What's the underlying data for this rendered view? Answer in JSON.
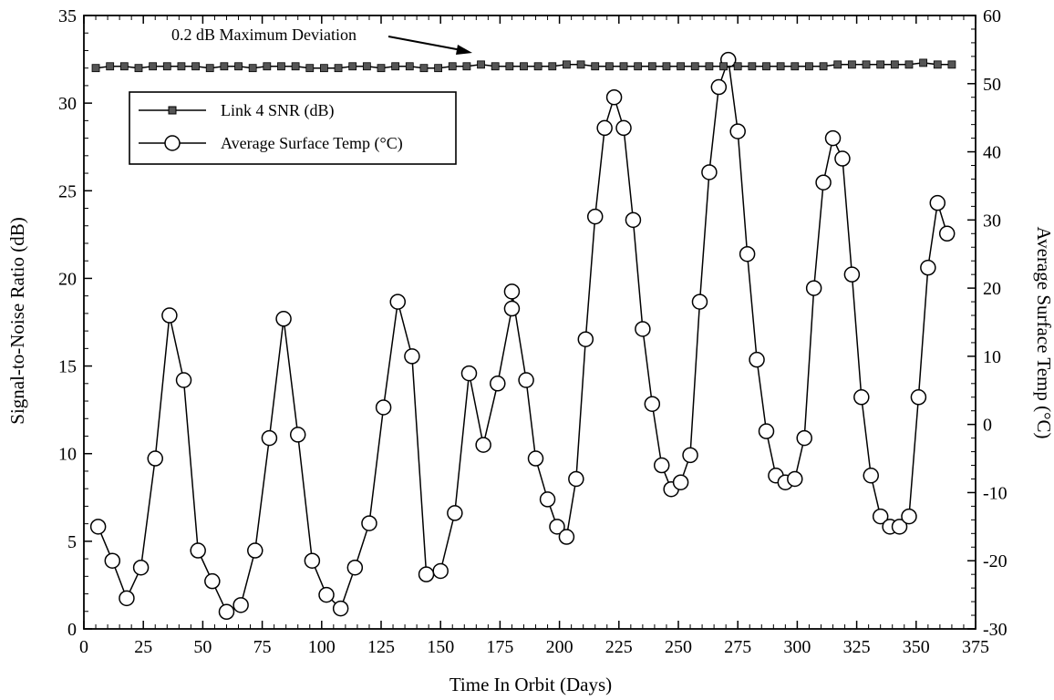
{
  "chart_data": {
    "type": "line",
    "xlabel": "Time In Orbit (Days)",
    "ylabel": "Signal-to-Noise Ratio (dB)",
    "y2label": "Average Surface Temp (°C)",
    "xlim": [
      0,
      375
    ],
    "ylim": [
      0,
      35
    ],
    "y2lim": [
      -30,
      60
    ],
    "x_ticks": [
      0,
      25,
      50,
      75,
      100,
      125,
      150,
      175,
      200,
      225,
      250,
      275,
      300,
      325,
      350,
      375
    ],
    "y_ticks": [
      0,
      5,
      10,
      15,
      20,
      25,
      30,
      35
    ],
    "y2_ticks": [
      -30,
      -20,
      -10,
      0,
      10,
      20,
      30,
      40,
      50,
      60
    ],
    "grid": false,
    "legend_position": "top-left",
    "annotation": "0.2 dB Maximum Deviation",
    "series": [
      {
        "name": "Link 4 SNR (dB)",
        "axis": "left",
        "marker": "square",
        "x": [
          5,
          11,
          17,
          23,
          29,
          35,
          41,
          47,
          53,
          59,
          65,
          71,
          77,
          83,
          89,
          95,
          101,
          107,
          113,
          119,
          125,
          131,
          137,
          143,
          149,
          155,
          161,
          167,
          173,
          179,
          185,
          191,
          197,
          203,
          209,
          215,
          221,
          227,
          233,
          239,
          245,
          251,
          257,
          263,
          269,
          275,
          281,
          287,
          293,
          299,
          305,
          311,
          317,
          323,
          329,
          335,
          341,
          347,
          353,
          359,
          365
        ],
        "values": [
          32.0,
          32.1,
          32.1,
          32.0,
          32.1,
          32.1,
          32.1,
          32.1,
          32.0,
          32.1,
          32.1,
          32.0,
          32.1,
          32.1,
          32.1,
          32.0,
          32.0,
          32.0,
          32.1,
          32.1,
          32.0,
          32.1,
          32.1,
          32.0,
          32.0,
          32.1,
          32.1,
          32.2,
          32.1,
          32.1,
          32.1,
          32.1,
          32.1,
          32.2,
          32.2,
          32.1,
          32.1,
          32.1,
          32.1,
          32.1,
          32.1,
          32.1,
          32.1,
          32.1,
          32.1,
          32.1,
          32.1,
          32.1,
          32.1,
          32.1,
          32.1,
          32.1,
          32.2,
          32.2,
          32.2,
          32.2,
          32.2,
          32.2,
          32.3,
          32.2,
          32.2
        ]
      },
      {
        "name": "Average Surface Temp (°C)",
        "axis": "right",
        "marker": "circle",
        "x": [
          6,
          12,
          18,
          24,
          30,
          36,
          42,
          48,
          54,
          60,
          66,
          72,
          78,
          84,
          90,
          96,
          102,
          108,
          114,
          120,
          126,
          132,
          138,
          144,
          150,
          156,
          162,
          168,
          174,
          180,
          180,
          186,
          190,
          195,
          199,
          203,
          207,
          211,
          215,
          219,
          223,
          227,
          231,
          235,
          239,
          243,
          247,
          251,
          255,
          259,
          263,
          267,
          271,
          275,
          279,
          283,
          287,
          291,
          295,
          299,
          303,
          307,
          311,
          315,
          319,
          323,
          327,
          331,
          335,
          339,
          343,
          347,
          351,
          355,
          359,
          363
        ],
        "values": [
          -15,
          -20,
          -25.5,
          -21,
          -5,
          16,
          6.5,
          -18.5,
          -23,
          -27.5,
          -26.5,
          -18.5,
          -2,
          15.5,
          -1.5,
          -20,
          -25,
          -27,
          -21,
          -14.5,
          2.5,
          18,
          10,
          -22,
          -21.5,
          -13,
          7.5,
          -3,
          6,
          17,
          19.5,
          6.5,
          -5,
          -11,
          -15,
          -16.5,
          -8,
          12.5,
          30.5,
          43.5,
          48,
          43.5,
          30,
          14,
          3,
          -6,
          -9.5,
          -8.5,
          -4.5,
          18,
          37,
          49.5,
          53.5,
          43,
          25,
          9.5,
          -1,
          -7.5,
          -8.5,
          -8,
          -2,
          20,
          35.5,
          42,
          39,
          22,
          4,
          -7.5,
          -13.5,
          -15,
          -15,
          -13.5,
          4,
          23,
          32.5,
          28
        ]
      }
    ]
  }
}
